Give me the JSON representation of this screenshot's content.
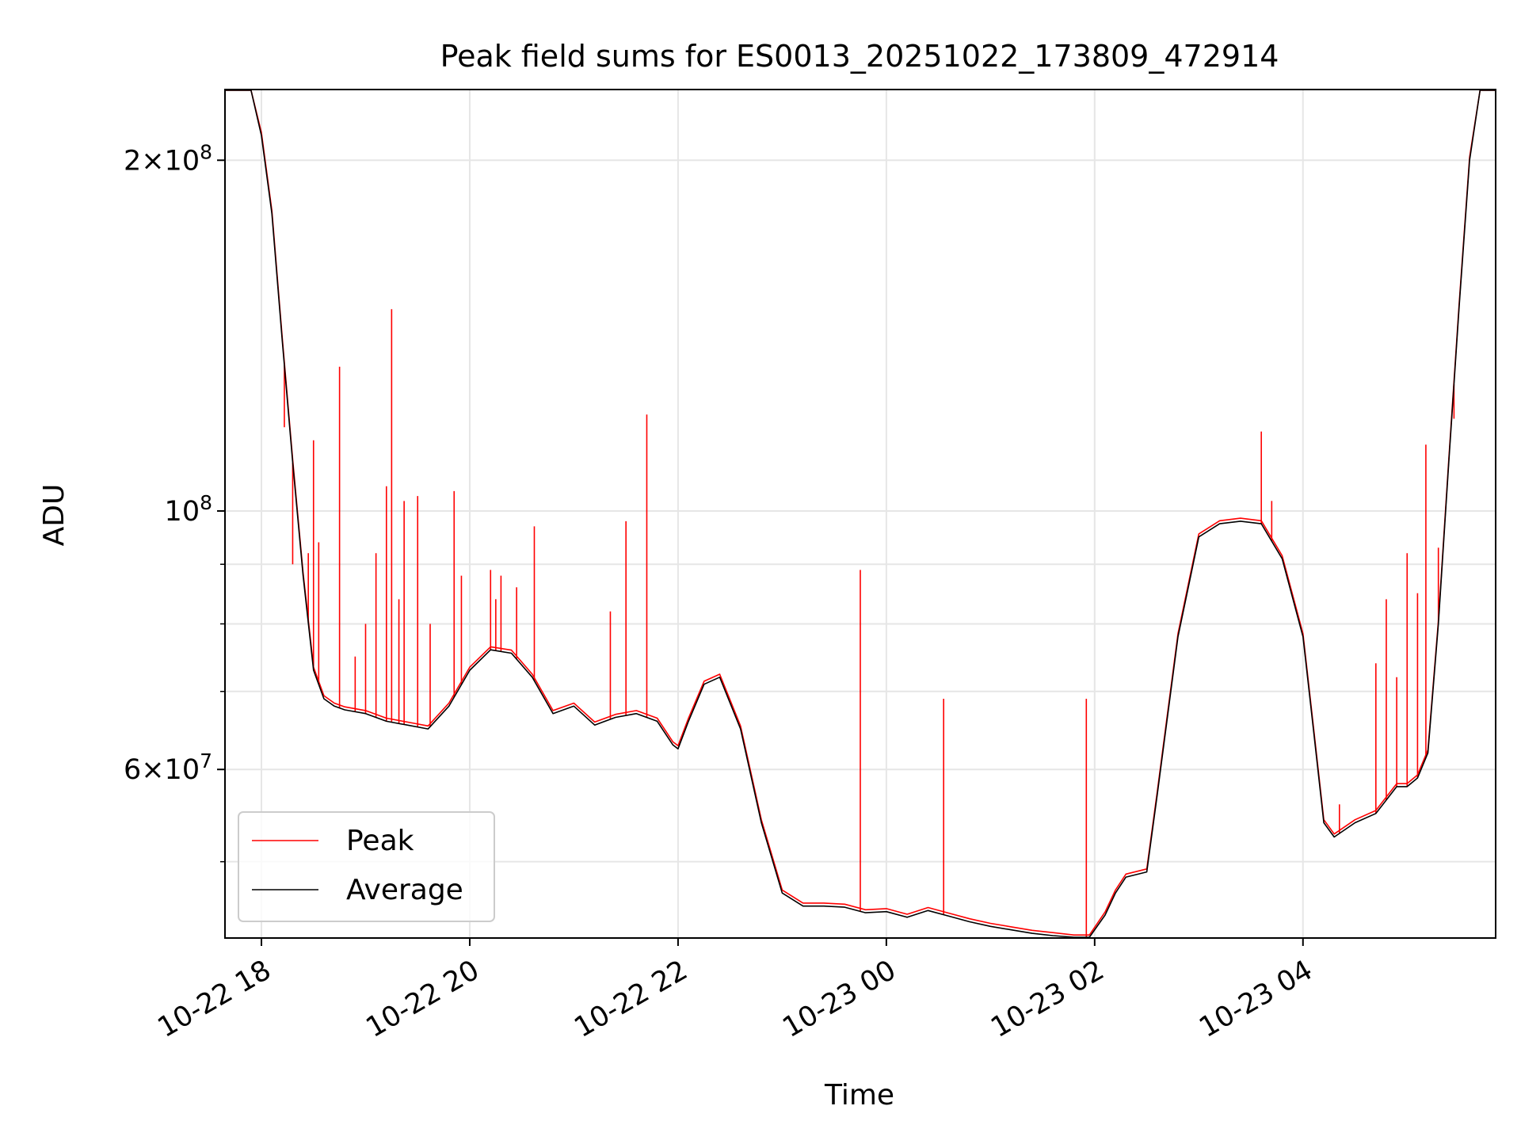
{
  "chart_data": {
    "type": "line",
    "title": "Peak field sums for ES0013_20251022_173809_472914",
    "xlabel": "Time",
    "ylabel": "ADU",
    "y_scale": "log",
    "ylim": [
      43000000,
      230000000
    ],
    "xlim_hours": [
      17.65,
      29.85
    ],
    "x_ticks": [
      {
        "hour": 18,
        "label": "10-22 18"
      },
      {
        "hour": 20,
        "label": "10-22 20"
      },
      {
        "hour": 22,
        "label": "10-22 22"
      },
      {
        "hour": 24,
        "label": "10-23 00"
      },
      {
        "hour": 26,
        "label": "10-23 02"
      },
      {
        "hour": 28,
        "label": "10-23 04"
      }
    ],
    "y_ticks": [
      {
        "value": 60000000,
        "mant": "6",
        "exp": "7"
      },
      {
        "value": 100000000,
        "mant": "",
        "exp": "8"
      },
      {
        "value": 200000000,
        "mant": "2",
        "exp": "8"
      }
    ],
    "y_minor": [
      50000000,
      70000000,
      80000000,
      90000000
    ],
    "x_grid_hours": [
      18,
      20,
      22,
      24,
      26,
      28
    ],
    "grid": true,
    "legend_position": "lower-left",
    "series": [
      {
        "name": "Average",
        "color": "#000000",
        "x_hours": [
          17.65,
          17.9,
          18.0,
          18.1,
          18.2,
          18.3,
          18.4,
          18.5,
          18.6,
          18.7,
          18.8,
          19.0,
          19.2,
          19.4,
          19.6,
          19.8,
          20.0,
          20.2,
          20.4,
          20.6,
          20.8,
          21.0,
          21.2,
          21.4,
          21.6,
          21.8,
          21.95,
          22.0,
          22.1,
          22.25,
          22.4,
          22.6,
          22.8,
          23.0,
          23.2,
          23.4,
          23.6,
          23.8,
          24.0,
          24.2,
          24.4,
          24.6,
          24.8,
          25.0,
          25.2,
          25.4,
          25.6,
          25.8,
          25.95,
          26.1,
          26.2,
          26.3,
          26.5,
          26.6,
          26.8,
          27.0,
          27.2,
          27.4,
          27.6,
          27.8,
          28.0,
          28.1,
          28.2,
          28.3,
          28.5,
          28.7,
          28.9,
          29.0,
          29.1,
          29.2,
          29.3,
          29.4,
          29.5,
          29.6,
          29.7,
          29.85
        ],
        "values": [
          230000000,
          230000000,
          210000000,
          180000000,
          140000000,
          110000000,
          88000000,
          73000000,
          69000000,
          68000000,
          67500000,
          67000000,
          66000000,
          65500000,
          65000000,
          68000000,
          73000000,
          76000000,
          75500000,
          72000000,
          67000000,
          68000000,
          65500000,
          66500000,
          67000000,
          66000000,
          63000000,
          62500000,
          66000000,
          71000000,
          72000000,
          65000000,
          54000000,
          47000000,
          45800000,
          45800000,
          45700000,
          45200000,
          45300000,
          44800000,
          45400000,
          44900000,
          44400000,
          44000000,
          43700000,
          43400000,
          43200000,
          43000000,
          43000000,
          45000000,
          47000000,
          48500000,
          49000000,
          57000000,
          78000000,
          95000000,
          97500000,
          98000000,
          97500000,
          91000000,
          78000000,
          65000000,
          54000000,
          52500000,
          54000000,
          55000000,
          58000000,
          58000000,
          59000000,
          62000000,
          80000000,
          110000000,
          150000000,
          200000000,
          230000000,
          230000000
        ]
      },
      {
        "name": "Peak",
        "color": "#ff0000",
        "spikes": [
          {
            "hour": 18.22,
            "value": 118000000
          },
          {
            "hour": 18.3,
            "value": 90000000
          },
          {
            "hour": 18.45,
            "value": 92000000
          },
          {
            "hour": 18.5,
            "value": 115000000
          },
          {
            "hour": 18.55,
            "value": 94000000
          },
          {
            "hour": 18.75,
            "value": 133000000
          },
          {
            "hour": 18.9,
            "value": 75000000
          },
          {
            "hour": 19.0,
            "value": 80000000
          },
          {
            "hour": 19.1,
            "value": 92000000
          },
          {
            "hour": 19.2,
            "value": 105000000
          },
          {
            "hour": 19.25,
            "value": 149000000
          },
          {
            "hour": 19.32,
            "value": 84000000
          },
          {
            "hour": 19.37,
            "value": 102000000
          },
          {
            "hour": 19.5,
            "value": 103000000
          },
          {
            "hour": 19.62,
            "value": 80000000
          },
          {
            "hour": 19.85,
            "value": 104000000
          },
          {
            "hour": 19.92,
            "value": 88000000
          },
          {
            "hour": 20.2,
            "value": 89000000
          },
          {
            "hour": 20.25,
            "value": 84000000
          },
          {
            "hour": 20.3,
            "value": 88000000
          },
          {
            "hour": 20.45,
            "value": 86000000
          },
          {
            "hour": 20.62,
            "value": 97000000
          },
          {
            "hour": 21.35,
            "value": 82000000
          },
          {
            "hour": 21.5,
            "value": 98000000
          },
          {
            "hour": 21.7,
            "value": 121000000
          },
          {
            "hour": 23.75,
            "value": 89000000
          },
          {
            "hour": 24.55,
            "value": 69000000
          },
          {
            "hour": 25.92,
            "value": 69000000
          },
          {
            "hour": 27.6,
            "value": 117000000
          },
          {
            "hour": 27.7,
            "value": 102000000
          },
          {
            "hour": 28.35,
            "value": 56000000
          },
          {
            "hour": 28.7,
            "value": 74000000
          },
          {
            "hour": 28.8,
            "value": 84000000
          },
          {
            "hour": 28.9,
            "value": 72000000
          },
          {
            "hour": 29.0,
            "value": 92000000
          },
          {
            "hour": 29.1,
            "value": 85000000
          },
          {
            "hour": 29.18,
            "value": 114000000
          },
          {
            "hour": 29.3,
            "value": 93000000
          },
          {
            "hour": 29.45,
            "value": 120000000
          }
        ]
      }
    ]
  }
}
